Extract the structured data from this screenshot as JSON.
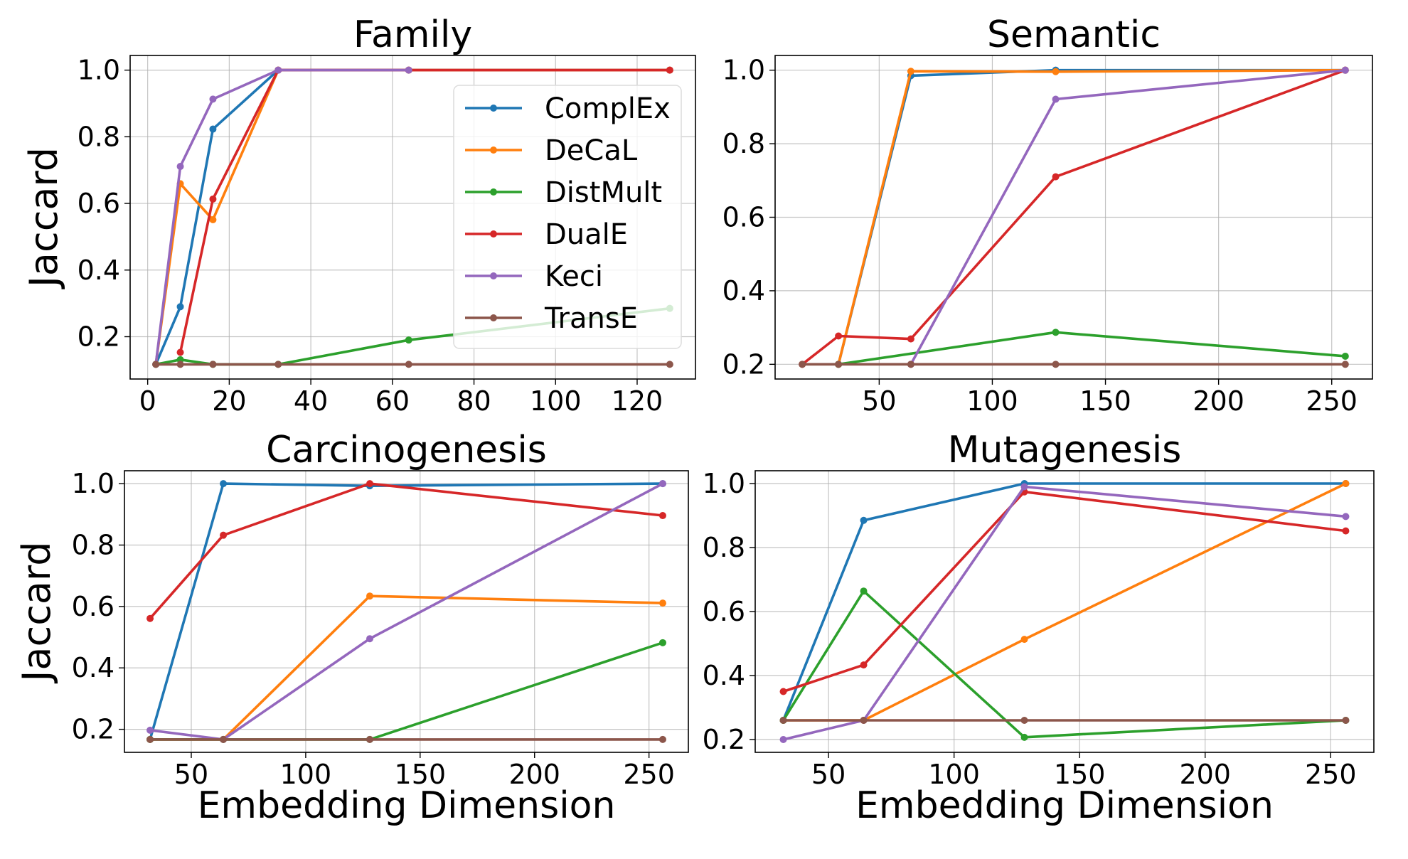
{
  "figure": {
    "legend_entries": [
      "ComplEx",
      "DeCaL",
      "DistMult",
      "DualE",
      "Keci",
      "TransE"
    ]
  },
  "chart_data": [
    {
      "type": "line",
      "title": "Family",
      "xlabel": "",
      "ylabel": "Jaccard",
      "xlim": [
        -4.3,
        134.3
      ],
      "ylim": [
        0.073,
        1.044
      ],
      "xticks": [
        0,
        20,
        40,
        60,
        80,
        100,
        120
      ],
      "xtick_labels": [
        "0",
        "20",
        "40",
        "60",
        "80",
        "100",
        "120"
      ],
      "yticks": [
        0.2,
        0.4,
        0.6,
        0.8,
        1.0
      ],
      "ytick_labels": [
        "0.2",
        "0.4",
        "0.6",
        "0.8",
        "1.0"
      ],
      "grid": true,
      "legend": "upper-right",
      "series": [
        {
          "name": "ComplEx",
          "color": "#1f77b4",
          "x": [
            2,
            8,
            16,
            32,
            64,
            128
          ],
          "y": [
            0.117,
            0.29,
            0.823,
            1.0,
            1.0,
            1.0
          ]
        },
        {
          "name": "DeCaL",
          "color": "#ff7f0e",
          "x": [
            2,
            8,
            16,
            32,
            64,
            128
          ],
          "y": [
            0.117,
            0.659,
            0.551,
            1.0,
            1.0,
            1.0
          ]
        },
        {
          "name": "DistMult",
          "color": "#2ca02c",
          "x": [
            2,
            8,
            16,
            32,
            64,
            128
          ],
          "y": [
            0.117,
            0.131,
            0.117,
            0.117,
            0.19,
            0.285
          ]
        },
        {
          "name": "DualE",
          "color": "#d62728",
          "x": [
            8,
            16,
            32,
            64,
            128
          ],
          "y": [
            0.153,
            0.613,
            1.0,
            1.0,
            1.0
          ]
        },
        {
          "name": "Keci",
          "color": "#9467bd",
          "x": [
            2,
            8,
            16,
            32,
            64
          ],
          "y": [
            0.117,
            0.711,
            0.913,
            1.0,
            1.0
          ]
        },
        {
          "name": "TransE",
          "color": "#8c564b",
          "x": [
            2,
            8,
            16,
            32,
            64,
            128
          ],
          "y": [
            0.117,
            0.117,
            0.117,
            0.117,
            0.117,
            0.117
          ]
        }
      ]
    },
    {
      "type": "line",
      "title": "Semantic",
      "xlabel": "",
      "ylabel": "",
      "xlim": [
        4,
        268
      ],
      "ylim": [
        0.16,
        1.04
      ],
      "xticks": [
        50,
        100,
        150,
        200,
        250
      ],
      "xtick_labels": [
        "50",
        "100",
        "150",
        "200",
        "250"
      ],
      "yticks": [
        0.2,
        0.4,
        0.6,
        0.8,
        1.0
      ],
      "ytick_labels": [
        "0.2",
        "0.4",
        "0.6",
        "0.8",
        "1.0"
      ],
      "grid": true,
      "legend": "none",
      "series": [
        {
          "name": "ComplEx",
          "color": "#1f77b4",
          "x": [
            32,
            64,
            128,
            256
          ],
          "y": [
            0.2,
            0.985,
            1.0,
            1.0
          ]
        },
        {
          "name": "DeCaL",
          "color": "#ff7f0e",
          "x": [
            32,
            64,
            128,
            256
          ],
          "y": [
            0.2,
            0.997,
            0.996,
            1.0
          ]
        },
        {
          "name": "DistMult",
          "color": "#2ca02c",
          "x": [
            32,
            128,
            256
          ],
          "y": [
            0.2,
            0.287,
            0.222
          ]
        },
        {
          "name": "DualE",
          "color": "#d62728",
          "x": [
            16,
            32,
            64,
            128,
            256
          ],
          "y": [
            0.2,
            0.277,
            0.269,
            0.71,
            1.0
          ]
        },
        {
          "name": "Keci",
          "color": "#9467bd",
          "x": [
            64,
            128,
            256
          ],
          "y": [
            0.2,
            0.921,
            1.0
          ]
        },
        {
          "name": "TransE",
          "color": "#8c564b",
          "x": [
            16,
            32,
            64,
            128,
            256
          ],
          "y": [
            0.2,
            0.2,
            0.2,
            0.2,
            0.2
          ]
        }
      ]
    },
    {
      "type": "line",
      "title": "Carcinogenesis",
      "xlabel": "Embedding Dimension",
      "ylabel": "Jaccard",
      "xlim": [
        20.8,
        267.2
      ],
      "ylim": [
        0.125,
        1.042
      ],
      "xticks": [
        50,
        100,
        150,
        200,
        250
      ],
      "xtick_labels": [
        "50",
        "100",
        "150",
        "200",
        "250"
      ],
      "yticks": [
        0.2,
        0.4,
        0.6,
        0.8,
        1.0
      ],
      "ytick_labels": [
        "0.2",
        "0.4",
        "0.6",
        "0.8",
        "1.0"
      ],
      "grid": true,
      "legend": "none",
      "series": [
        {
          "name": "ComplEx",
          "color": "#1f77b4",
          "x": [
            32,
            64,
            128,
            256
          ],
          "y": [
            0.167,
            1.0,
            0.993,
            1.0
          ]
        },
        {
          "name": "DeCaL",
          "color": "#ff7f0e",
          "x": [
            32,
            64,
            128,
            256
          ],
          "y": [
            0.167,
            0.167,
            0.634,
            0.611
          ]
        },
        {
          "name": "DistMult",
          "color": "#2ca02c",
          "x": [
            32,
            64,
            128,
            256
          ],
          "y": [
            0.167,
            0.167,
            0.167,
            0.482
          ]
        },
        {
          "name": "DualE",
          "color": "#d62728",
          "x": [
            32,
            64,
            128,
            256
          ],
          "y": [
            0.561,
            0.832,
            1.0,
            0.896
          ]
        },
        {
          "name": "Keci",
          "color": "#9467bd",
          "x": [
            32,
            64,
            128,
            256
          ],
          "y": [
            0.197,
            0.167,
            0.495,
            1.0
          ]
        },
        {
          "name": "TransE",
          "color": "#8c564b",
          "x": [
            32,
            64,
            128,
            256
          ],
          "y": [
            0.167,
            0.167,
            0.167,
            0.167
          ]
        }
      ]
    },
    {
      "type": "line",
      "title": "Mutagenesis",
      "xlabel": "Embedding Dimension",
      "ylabel": "",
      "xlim": [
        20.8,
        267.2
      ],
      "ylim": [
        0.16,
        1.04
      ],
      "xticks": [
        50,
        100,
        150,
        200,
        250
      ],
      "xtick_labels": [
        "50",
        "100",
        "150",
        "200",
        "250"
      ],
      "yticks": [
        0.2,
        0.4,
        0.6,
        0.8,
        1.0
      ],
      "ytick_labels": [
        "0.2",
        "0.4",
        "0.6",
        "0.8",
        "1.0"
      ],
      "grid": true,
      "legend": "none",
      "series": [
        {
          "name": "ComplEx",
          "color": "#1f77b4",
          "x": [
            32,
            64,
            128,
            256
          ],
          "y": [
            0.26,
            0.885,
            1.0,
            1.0
          ]
        },
        {
          "name": "DeCaL",
          "color": "#ff7f0e",
          "x": [
            32,
            64,
            128,
            256
          ],
          "y": [
            0.26,
            0.26,
            0.513,
            1.0
          ]
        },
        {
          "name": "DistMult",
          "color": "#2ca02c",
          "x": [
            32,
            64,
            128,
            256
          ],
          "y": [
            0.26,
            0.664,
            0.207,
            0.26
          ]
        },
        {
          "name": "DualE",
          "color": "#d62728",
          "x": [
            32,
            64,
            128,
            256
          ],
          "y": [
            0.35,
            0.433,
            0.974,
            0.852
          ]
        },
        {
          "name": "Keci",
          "color": "#9467bd",
          "x": [
            32,
            64,
            128,
            256
          ],
          "y": [
            0.2,
            0.26,
            0.99,
            0.897
          ]
        },
        {
          "name": "TransE",
          "color": "#8c564b",
          "x": [
            32,
            64,
            128,
            256
          ],
          "y": [
            0.26,
            0.26,
            0.26,
            0.26
          ]
        }
      ]
    }
  ]
}
